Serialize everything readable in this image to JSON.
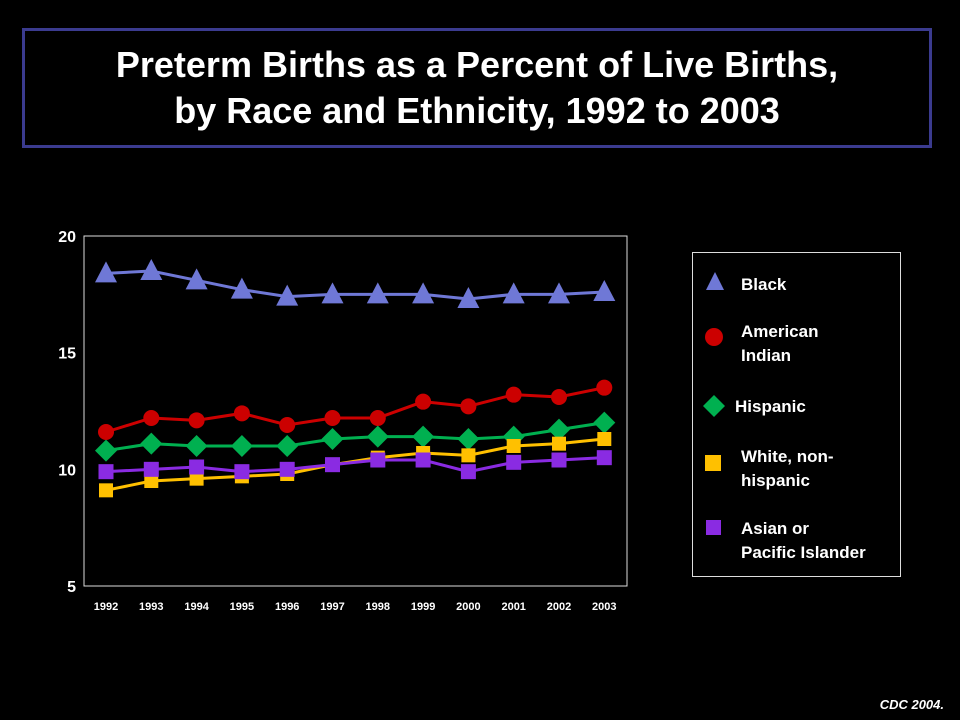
{
  "title_lines": [
    "Preterm Births as a Percent of Live Births,",
    "by Race and Ethnicity, 1992 to 2003"
  ],
  "source": "CDC 2004.",
  "chart_data": {
    "type": "line",
    "title": "Preterm Births as a Percent of Live Births, by Race and Ethnicity, 1992 to 2003",
    "xlabel": "",
    "ylabel": "",
    "x": [
      "1992",
      "1993",
      "1994",
      "1995",
      "1996",
      "1997",
      "1998",
      "1999",
      "2000",
      "2001",
      "2002",
      "2003"
    ],
    "ylim": [
      5,
      20
    ],
    "yticks": [
      "5",
      "10",
      "15",
      "20"
    ],
    "grid": false,
    "legend_position": "right",
    "series": [
      {
        "name": "Black",
        "marker": "triangle",
        "color": "#6f78d6",
        "values": [
          18.4,
          18.5,
          18.1,
          17.7,
          17.4,
          17.5,
          17.5,
          17.5,
          17.3,
          17.5,
          17.5,
          17.6
        ]
      },
      {
        "name": "American Indian",
        "marker": "circle",
        "color": "#cc0000",
        "values": [
          11.6,
          12.2,
          12.1,
          12.4,
          11.9,
          12.2,
          12.2,
          12.9,
          12.7,
          13.2,
          13.1,
          13.5
        ]
      },
      {
        "name": "Hispanic",
        "marker": "diamond",
        "color": "#00b050",
        "values": [
          10.8,
          11.1,
          11.0,
          11.0,
          11.0,
          11.3,
          11.4,
          11.4,
          11.3,
          11.4,
          11.7,
          12.0
        ]
      },
      {
        "name": "White, non-hispanic",
        "marker": "square",
        "color": "#ffc000",
        "values": [
          9.1,
          9.5,
          9.6,
          9.7,
          9.8,
          10.2,
          10.5,
          10.7,
          10.6,
          11.0,
          11.1,
          11.3
        ]
      },
      {
        "name": "Asian or Pacific Islander",
        "marker": "square",
        "color": "#8a2be2",
        "values": [
          9.9,
          10.0,
          10.1,
          9.9,
          10.0,
          10.2,
          10.4,
          10.4,
          9.9,
          10.3,
          10.4,
          10.5
        ]
      }
    ]
  },
  "legend": [
    {
      "label": "Black",
      "marker": "triangle",
      "color": "#6f78d6"
    },
    {
      "label": "American\nIndian",
      "marker": "circle",
      "color": "#cc0000"
    },
    {
      "label": "Hispanic",
      "marker": "diamond",
      "color": "#00b050"
    },
    {
      "label": "White, non-\nhispanic",
      "marker": "square",
      "color": "#ffc000"
    },
    {
      "label": "Asian or\nPacific Islander",
      "marker": "square",
      "color": "#8a2be2"
    }
  ]
}
